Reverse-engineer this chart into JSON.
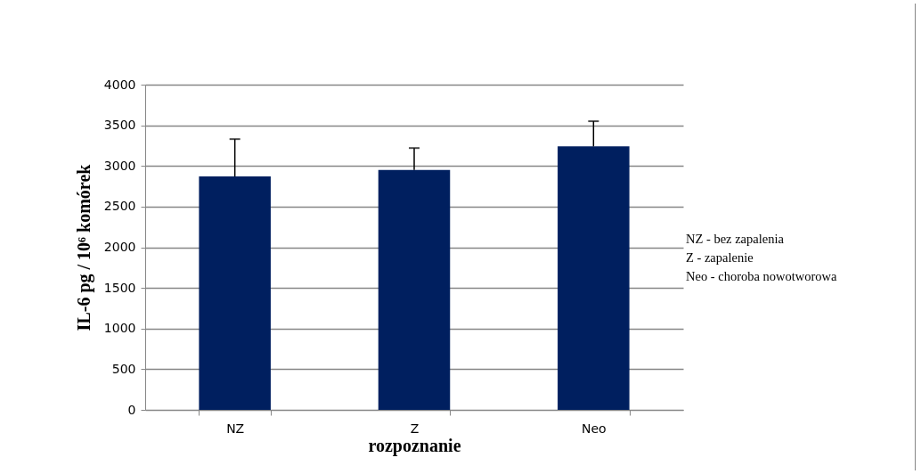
{
  "chart_data": {
    "type": "bar",
    "xlabel": "rozpoznanie",
    "ylabel": "IL-6 pg / 10⁶ komórek",
    "categories": [
      "NZ",
      "Z",
      "Neo"
    ],
    "values": [
      2870,
      2950,
      3240
    ],
    "errors": [
      [
        2870,
        3330
      ],
      [
        2950,
        3220
      ],
      [
        3240,
        3550
      ]
    ],
    "color": "#001f5f",
    "ylim": [
      0,
      4000
    ],
    "yticks": [
      0,
      500,
      1000,
      1500,
      2000,
      2500,
      3000,
      3500,
      4000
    ],
    "grid": "y",
    "annotations": [
      "NZ - bez zapalenia",
      "Z - zapalenie",
      "Neo - choroba nowotworowa"
    ]
  }
}
